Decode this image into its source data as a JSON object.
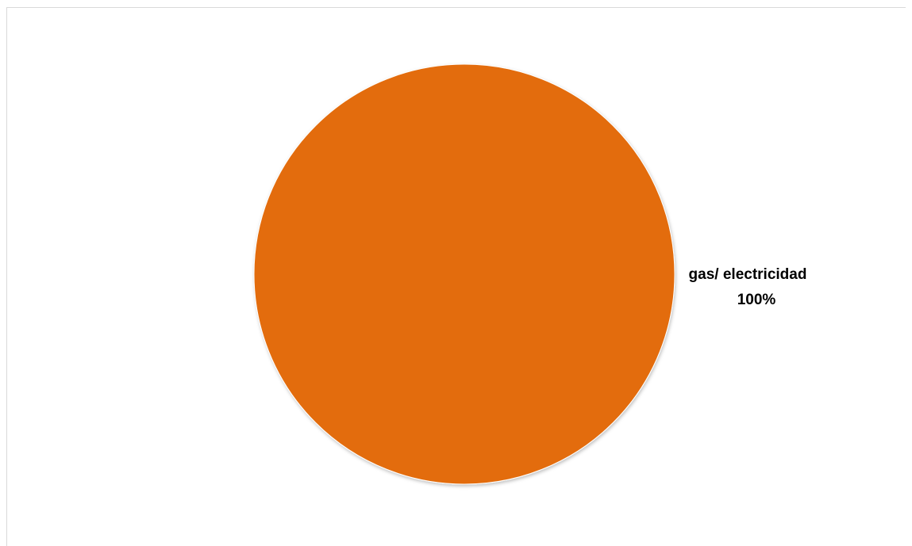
{
  "chart_data": {
    "type": "pie",
    "title": "",
    "categories": [
      "gas/ electricidad"
    ],
    "values": [
      100
    ],
    "percent_labels": [
      "100%"
    ],
    "colors": [
      "#E36C0A"
    ],
    "legend": "none",
    "data_labels": "outside-right"
  }
}
